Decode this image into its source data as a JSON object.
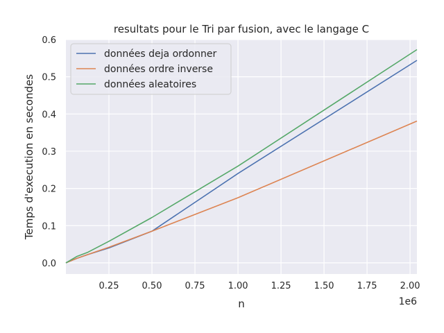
{
  "chart_data": {
    "type": "line",
    "title": "resultats pour le Tri par fusion, avec le langage C",
    "xlabel": "n",
    "ylabel": "Temps d'execution en secondes",
    "x_offset_label": "1e6",
    "xlim": [
      0,
      2040000
    ],
    "ylim": [
      -0.03,
      0.6
    ],
    "xticks": [
      250000,
      500000,
      750000,
      1000000,
      1250000,
      1500000,
      1750000,
      2000000
    ],
    "xtick_labels": [
      "0.25",
      "0.50",
      "0.75",
      "1.00",
      "1.25",
      "1.50",
      "1.75",
      "2.00"
    ],
    "yticks": [
      0.0,
      0.1,
      0.2,
      0.3,
      0.4,
      0.5,
      0.6
    ],
    "ytick_labels": [
      "0.0",
      "0.1",
      "0.2",
      "0.3",
      "0.4",
      "0.5",
      "0.6"
    ],
    "grid": true,
    "legend_position": "top-left",
    "background": "#eaeaf2",
    "series": [
      {
        "name": "données deja ordonner",
        "color": "#4c72b0",
        "x": [
          0,
          62500,
          125000,
          250000,
          500000,
          1000000,
          2040000
        ],
        "y": [
          0.0,
          0.012,
          0.022,
          0.04,
          0.085,
          0.24,
          0.544
        ]
      },
      {
        "name": "données ordre inverse",
        "color": "#dd8452",
        "x": [
          0,
          62500,
          125000,
          250000,
          500000,
          1000000,
          2040000
        ],
        "y": [
          0.0,
          0.012,
          0.022,
          0.042,
          0.085,
          0.175,
          0.381
        ]
      },
      {
        "name": "données aleatoires",
        "color": "#55a868",
        "x": [
          0,
          62500,
          125000,
          250000,
          500000,
          1000000,
          2040000
        ],
        "y": [
          0.0,
          0.017,
          0.028,
          0.058,
          0.122,
          0.26,
          0.573
        ]
      }
    ]
  }
}
